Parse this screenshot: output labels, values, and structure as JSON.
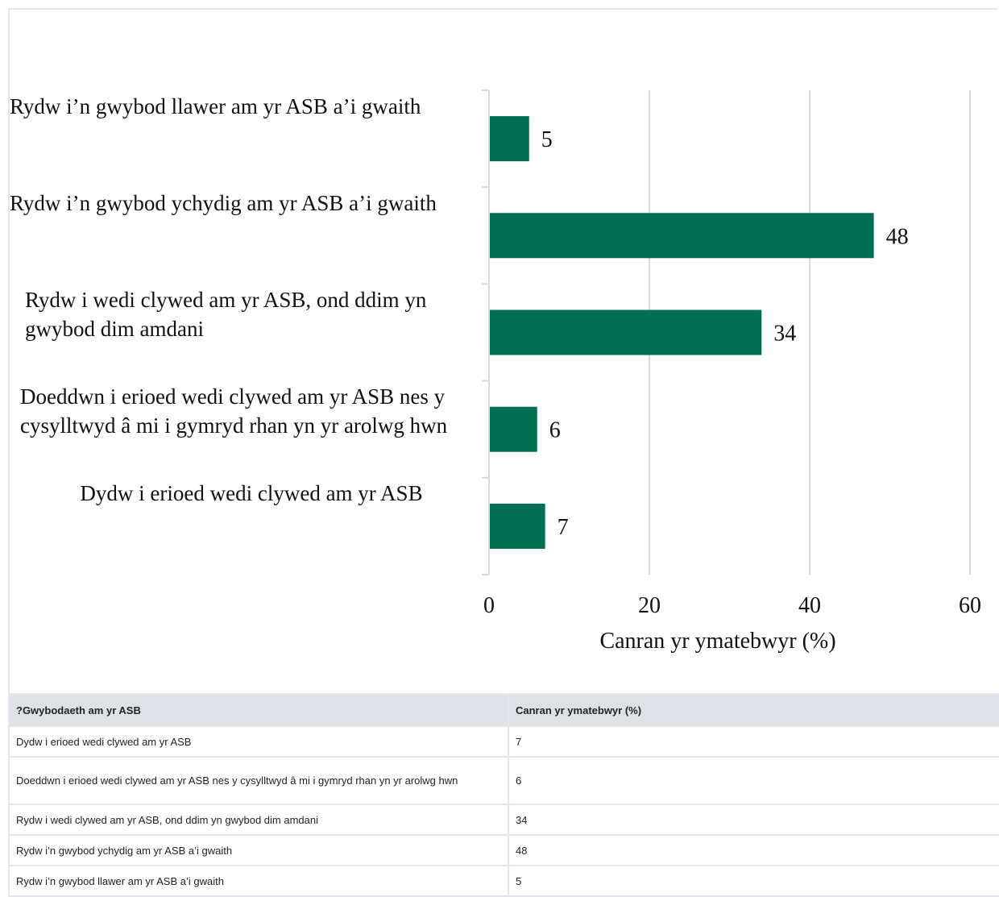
{
  "chart_data": {
    "type": "bar",
    "orientation": "horizontal",
    "categories": [
      "Rydw i’n gwybod  llawer  am  yr ASB a’i gwaith",
      "Rydw i’n gwybod  ychydig  am  yr  ASB a’i gwaith",
      "Rydw i wedi clywed am yr ASB, ond ddim yn gwybod dim amdani",
      "Doeddwn i erioed wedi clywed am yr ASB nes y cysylltwyd â mi i gymryd rhan yn yr arolwg hwn",
      "Dydw i erioed wedi clywed am yr ASB"
    ],
    "values": [
      5,
      48,
      34,
      6,
      7
    ],
    "data_labels": [
      "5",
      "48",
      "34",
      "6",
      "7"
    ],
    "xlabel": "Canran yr ymatebwyr (%)",
    "xlim": [
      0,
      60
    ],
    "xticks": [
      "0",
      "20",
      "40",
      "60"
    ],
    "grid": "vertical",
    "bar_color": "#006f51"
  },
  "table": {
    "headers": [
      "?Gwybodaeth am yr ASB",
      "Canran yr ymatebwyr (%)"
    ],
    "rows": [
      [
        "Dydw i erioed wedi clywed am yr ASB",
        "7"
      ],
      [
        "Doeddwn i erioed wedi clywed am yr ASB nes y cysylltwyd â mi i gymryd rhan yn yr arolwg hwn",
        "6"
      ],
      [
        "Rydw i wedi clywed am yr ASB, ond ddim yn gwybod dim amdani",
        "34"
      ],
      [
        "Rydw i’n gwybod ychydig am yr ASB a’i gwaith",
        "48"
      ],
      [
        "Rydw i’n gwybod llawer am yr ASB a’i gwaith",
        "5"
      ]
    ]
  }
}
